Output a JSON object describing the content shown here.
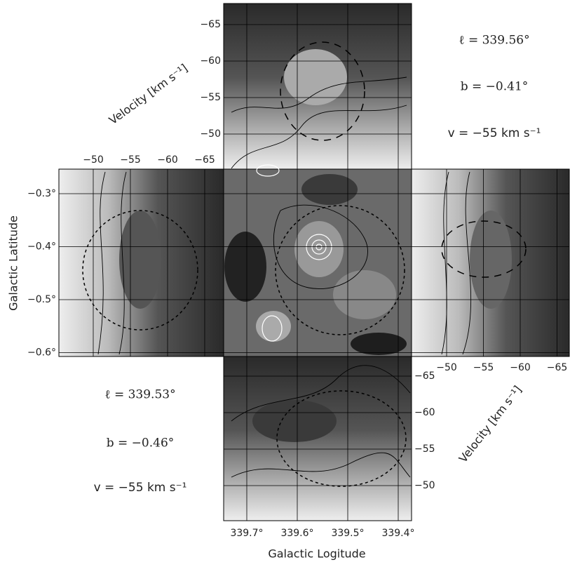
{
  "axes": {
    "x_label": "Galactic Logitude",
    "y_label": "Galactic Latitude",
    "velocity_label_top": "Velocity [km s⁻¹]",
    "velocity_label_right": "Velocity [km s⁻¹]"
  },
  "longitude_ticks": [
    "339.7°",
    "339.6°",
    "339.5°",
    "339.4°"
  ],
  "latitude_ticks": [
    "−0.3°",
    "−0.4°",
    "−0.5°",
    "−0.6°"
  ],
  "top_velocity_ticks": [
    "−65",
    "−60",
    "−55",
    "−50"
  ],
  "left_velocity_ticks": [
    "−50",
    "−55",
    "−60",
    "−65"
  ],
  "right_velocity_ticks": [
    "−50",
    "−55",
    "−60",
    "−65"
  ],
  "bottom_velocity_ticks": [
    "−65",
    "−60",
    "−55",
    "−50"
  ],
  "annotation_top_right": {
    "l": "ℓ = 339.56°",
    "b": "b = −0.41°",
    "v": "v = −55 km s⁻¹"
  },
  "annotation_bottom_left": {
    "l": "ℓ = 339.53°",
    "b": "b = −0.46°",
    "v": "v = −55 km s⁻¹"
  }
}
